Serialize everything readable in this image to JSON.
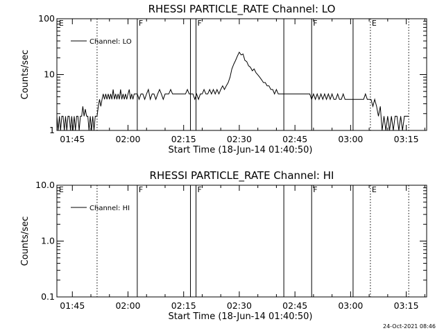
{
  "chart_data": [
    {
      "type": "line",
      "title": "RHESSI PARTICLE_RATE Channel: LO",
      "xlabel": "Start Time (18-Jun-14 01:40:50)",
      "ylabel": "Counts/sec",
      "yscale": "log",
      "ylim": [
        1,
        100
      ],
      "yticks": [
        {
          "v": 1,
          "label": "1"
        },
        {
          "v": 10,
          "label": "10"
        },
        {
          "v": 100,
          "label": "100"
        }
      ],
      "xlim": [
        "01:40:50",
        "03:20:30"
      ],
      "xticks": [
        "01:45",
        "02:00",
        "02:15",
        "02:30",
        "02:45",
        "03:00",
        "03:15"
      ],
      "legend": {
        "label": "Channel: LO",
        "placement": "top-left"
      },
      "markers": [
        {
          "time": "01:41:00",
          "style": "none",
          "label": "E"
        },
        {
          "time": "01:51:40",
          "style": "dotted",
          "label": ""
        },
        {
          "time": "02:02:30",
          "style": "solid",
          "label": "F"
        },
        {
          "time": "02:16:50",
          "style": "solid",
          "label": ""
        },
        {
          "time": "02:18:20",
          "style": "solid",
          "label": "F"
        },
        {
          "time": "02:42:00",
          "style": "solid",
          "label": ""
        },
        {
          "time": "02:49:30",
          "style": "solid",
          "label": "F"
        },
        {
          "time": "03:00:40",
          "style": "solid",
          "label": ""
        },
        {
          "time": "03:05:20",
          "style": "dotted",
          "label": "E"
        },
        {
          "time": "03:15:40",
          "style": "dotted",
          "label": ""
        }
      ],
      "series": [
        {
          "name": "Channel: LO",
          "points": [
            [
              "01:40:50",
              1.8
            ],
            [
              "01:41:10",
              1.0
            ],
            [
              "01:41:30",
              1.8
            ],
            [
              "01:41:50",
              1.0
            ],
            [
              "01:42:10",
              1.8
            ],
            [
              "01:42:30",
              1.8
            ],
            [
              "01:42:50",
              1.0
            ],
            [
              "01:43:10",
              1.8
            ],
            [
              "01:43:30",
              1.0
            ],
            [
              "01:43:50",
              1.8
            ],
            [
              "01:44:10",
              1.8
            ],
            [
              "01:44:30",
              1.0
            ],
            [
              "01:44:50",
              1.8
            ],
            [
              "01:45:10",
              1.0
            ],
            [
              "01:45:30",
              1.8
            ],
            [
              "01:45:50",
              1.0
            ],
            [
              "01:46:10",
              1.8
            ],
            [
              "01:46:30",
              1.8
            ],
            [
              "01:46:50",
              1.0
            ],
            [
              "01:47:10",
              1.8
            ],
            [
              "01:47:30",
              1.8
            ],
            [
              "01:47:50",
              2.7
            ],
            [
              "01:48:10",
              1.8
            ],
            [
              "01:48:30",
              2.4
            ],
            [
              "01:48:50",
              1.8
            ],
            [
              "01:49:10",
              1.8
            ],
            [
              "01:49:30",
              1.0
            ],
            [
              "01:49:50",
              1.8
            ],
            [
              "01:50:10",
              1.0
            ],
            [
              "01:50:30",
              1.8
            ],
            [
              "01:50:50",
              1.0
            ],
            [
              "01:51:10",
              1.8
            ],
            [
              "01:51:40",
              1.8
            ],
            [
              "01:52:00",
              2.7
            ],
            [
              "01:52:20",
              3.6
            ],
            [
              "01:52:40",
              2.7
            ],
            [
              "01:53:00",
              3.6
            ],
            [
              "01:53:20",
              4.5
            ],
            [
              "01:53:40",
              3.6
            ],
            [
              "01:54:00",
              4.5
            ],
            [
              "01:54:20",
              3.6
            ],
            [
              "01:54:40",
              4.5
            ],
            [
              "01:55:00",
              3.6
            ],
            [
              "01:55:20",
              4.5
            ],
            [
              "01:55:40",
              3.6
            ],
            [
              "01:56:00",
              5.4
            ],
            [
              "01:56:20",
              3.6
            ],
            [
              "01:56:40",
              4.5
            ],
            [
              "01:57:00",
              3.6
            ],
            [
              "01:57:20",
              4.5
            ],
            [
              "01:57:40",
              3.6
            ],
            [
              "01:58:00",
              5.4
            ],
            [
              "01:58:20",
              3.6
            ],
            [
              "01:58:40",
              4.5
            ],
            [
              "01:59:00",
              3.6
            ],
            [
              "01:59:20",
              4.5
            ],
            [
              "01:59:40",
              3.6
            ],
            [
              "02:00:00",
              4.5
            ],
            [
              "02:00:20",
              5.4
            ],
            [
              "02:00:40",
              3.6
            ],
            [
              "02:01:00",
              4.5
            ],
            [
              "02:01:20",
              3.6
            ],
            [
              "02:01:40",
              4.5
            ],
            [
              "02:02:00",
              4.5
            ],
            [
              "02:02:30",
              4.5
            ],
            [
              "02:03:00",
              3.6
            ],
            [
              "02:03:30",
              4.5
            ],
            [
              "02:04:00",
              4.5
            ],
            [
              "02:04:30",
              3.6
            ],
            [
              "02:05:00",
              4.5
            ],
            [
              "02:05:30",
              5.4
            ],
            [
              "02:06:00",
              3.6
            ],
            [
              "02:06:30",
              4.5
            ],
            [
              "02:07:00",
              4.5
            ],
            [
              "02:07:30",
              3.6
            ],
            [
              "02:08:00",
              4.5
            ],
            [
              "02:08:30",
              5.4
            ],
            [
              "02:09:00",
              4.5
            ],
            [
              "02:09:30",
              3.6
            ],
            [
              "02:10:00",
              4.5
            ],
            [
              "02:10:30",
              4.5
            ],
            [
              "02:11:00",
              4.5
            ],
            [
              "02:11:30",
              5.4
            ],
            [
              "02:12:00",
              4.5
            ],
            [
              "02:12:30",
              4.5
            ],
            [
              "02:13:00",
              4.5
            ],
            [
              "02:13:30",
              4.5
            ],
            [
              "02:14:00",
              4.5
            ],
            [
              "02:14:30",
              4.5
            ],
            [
              "02:15:00",
              4.5
            ],
            [
              "02:15:30",
              4.5
            ],
            [
              "02:16:00",
              5.4
            ],
            [
              "02:16:30",
              4.5
            ],
            [
              "02:17:00",
              4.5
            ],
            [
              "02:17:30",
              4.5
            ],
            [
              "02:18:00",
              3.6
            ],
            [
              "02:18:30",
              4.5
            ],
            [
              "02:19:00",
              3.6
            ],
            [
              "02:19:30",
              4.5
            ],
            [
              "02:20:00",
              4.5
            ],
            [
              "02:20:30",
              5.4
            ],
            [
              "02:21:00",
              4.5
            ],
            [
              "02:21:30",
              4.5
            ],
            [
              "02:22:00",
              5.4
            ],
            [
              "02:22:30",
              4.5
            ],
            [
              "02:23:00",
              5.4
            ],
            [
              "02:23:30",
              4.5
            ],
            [
              "02:24:00",
              5.4
            ],
            [
              "02:24:30",
              4.5
            ],
            [
              "02:25:00",
              5.4
            ],
            [
              "02:25:30",
              6.3
            ],
            [
              "02:26:00",
              5.4
            ],
            [
              "02:26:30",
              6.3
            ],
            [
              "02:27:00",
              7.2
            ],
            [
              "02:27:30",
              9.0
            ],
            [
              "02:28:00",
              12.6
            ],
            [
              "02:28:30",
              15.3
            ],
            [
              "02:29:00",
              18.0
            ],
            [
              "02:29:30",
              21.6
            ],
            [
              "02:30:00",
              25.2
            ],
            [
              "02:30:30",
              22.5
            ],
            [
              "02:31:00",
              23.4
            ],
            [
              "02:31:30",
              18.0
            ],
            [
              "02:32:00",
              17.1
            ],
            [
              "02:32:30",
              14.4
            ],
            [
              "02:33:00",
              13.5
            ],
            [
              "02:33:30",
              11.7
            ],
            [
              "02:34:00",
              12.6
            ],
            [
              "02:34:30",
              10.8
            ],
            [
              "02:35:00",
              9.9
            ],
            [
              "02:35:30",
              9.0
            ],
            [
              "02:36:00",
              8.1
            ],
            [
              "02:36:30",
              7.2
            ],
            [
              "02:37:00",
              7.2
            ],
            [
              "02:37:30",
              6.3
            ],
            [
              "02:38:00",
              6.3
            ],
            [
              "02:38:30",
              5.4
            ],
            [
              "02:39:00",
              5.4
            ],
            [
              "02:39:30",
              4.5
            ],
            [
              "02:40:00",
              5.4
            ],
            [
              "02:40:30",
              4.5
            ],
            [
              "02:41:00",
              4.5
            ],
            [
              "02:41:30",
              4.5
            ],
            [
              "02:42:00",
              4.5
            ],
            [
              "02:43:00",
              4.5
            ],
            [
              "02:44:00",
              4.5
            ],
            [
              "02:45:00",
              4.5
            ],
            [
              "02:46:00",
              4.5
            ],
            [
              "02:47:00",
              4.5
            ],
            [
              "02:48:00",
              4.5
            ],
            [
              "02:49:00",
              4.5
            ],
            [
              "02:49:30",
              3.6
            ],
            [
              "02:50:00",
              4.5
            ],
            [
              "02:50:30",
              3.6
            ],
            [
              "02:51:00",
              4.5
            ],
            [
              "02:51:30",
              3.6
            ],
            [
              "02:52:00",
              4.5
            ],
            [
              "02:52:30",
              3.6
            ],
            [
              "02:53:00",
              4.5
            ],
            [
              "02:53:30",
              3.6
            ],
            [
              "02:54:00",
              4.5
            ],
            [
              "02:54:30",
              3.6
            ],
            [
              "02:55:00",
              4.5
            ],
            [
              "02:55:30",
              3.6
            ],
            [
              "02:56:00",
              3.6
            ],
            [
              "02:56:30",
              4.5
            ],
            [
              "02:57:00",
              3.6
            ],
            [
              "02:57:30",
              3.6
            ],
            [
              "02:58:00",
              4.5
            ],
            [
              "02:58:30",
              3.6
            ],
            [
              "02:59:00",
              3.6
            ],
            [
              "02:59:30",
              3.6
            ],
            [
              "03:00:00",
              3.6
            ],
            [
              "03:00:30",
              3.6
            ],
            [
              "03:01:00",
              3.6
            ],
            [
              "03:01:30",
              3.6
            ],
            [
              "03:02:00",
              3.6
            ],
            [
              "03:02:30",
              3.6
            ],
            [
              "03:03:00",
              3.6
            ],
            [
              "03:03:30",
              3.6
            ],
            [
              "03:04:00",
              4.5
            ],
            [
              "03:04:30",
              3.6
            ],
            [
              "03:05:00",
              3.6
            ],
            [
              "03:05:30",
              3.6
            ],
            [
              "03:06:00",
              2.7
            ],
            [
              "03:06:30",
              3.6
            ],
            [
              "03:07:00",
              2.7
            ],
            [
              "03:07:30",
              1.8
            ],
            [
              "03:08:00",
              2.7
            ],
            [
              "03:08:30",
              1.0
            ],
            [
              "03:09:00",
              1.8
            ],
            [
              "03:09:30",
              1.0
            ],
            [
              "03:10:00",
              1.8
            ],
            [
              "03:10:30",
              1.0
            ],
            [
              "03:11:00",
              1.8
            ],
            [
              "03:11:30",
              1.0
            ],
            [
              "03:12:00",
              1.8
            ],
            [
              "03:12:30",
              1.8
            ],
            [
              "03:13:00",
              1.0
            ],
            [
              "03:13:30",
              1.8
            ],
            [
              "03:14:00",
              1.0
            ],
            [
              "03:14:30",
              1.8
            ],
            [
              "03:15:00",
              1.8
            ],
            [
              "03:15:40",
              1.8
            ]
          ]
        }
      ]
    },
    {
      "type": "line",
      "title": "RHESSI PARTICLE_RATE Channel: HI",
      "xlabel": "Start Time (18-Jun-14 01:40:50)",
      "ylabel": "Counts/sec",
      "yscale": "log",
      "ylim": [
        0.1,
        10
      ],
      "yticks": [
        {
          "v": 0.1,
          "label": "0.1"
        },
        {
          "v": 1,
          "label": "1.0"
        },
        {
          "v": 10,
          "label": "10.0"
        }
      ],
      "xlim": [
        "01:40:50",
        "03:20:30"
      ],
      "xticks": [
        "01:45",
        "02:00",
        "02:15",
        "02:30",
        "02:45",
        "03:00",
        "03:15"
      ],
      "legend": {
        "label": "Channel: HI",
        "placement": "top-left"
      },
      "markers": [
        {
          "time": "01:41:00",
          "style": "none",
          "label": "E"
        },
        {
          "time": "01:51:40",
          "style": "dotted",
          "label": ""
        },
        {
          "time": "02:02:30",
          "style": "solid",
          "label": "F"
        },
        {
          "time": "02:16:50",
          "style": "solid",
          "label": ""
        },
        {
          "time": "02:18:20",
          "style": "solid",
          "label": "F"
        },
        {
          "time": "02:42:00",
          "style": "solid",
          "label": ""
        },
        {
          "time": "02:49:30",
          "style": "solid",
          "label": "F"
        },
        {
          "time": "03:00:40",
          "style": "solid",
          "label": ""
        },
        {
          "time": "03:05:20",
          "style": "dotted",
          "label": "E"
        },
        {
          "time": "03:15:40",
          "style": "dotted",
          "label": ""
        }
      ],
      "series": [
        {
          "name": "Channel: HI",
          "points": []
        }
      ]
    }
  ],
  "footer": {
    "timestamp": "24-Oct-2021 08:46"
  }
}
